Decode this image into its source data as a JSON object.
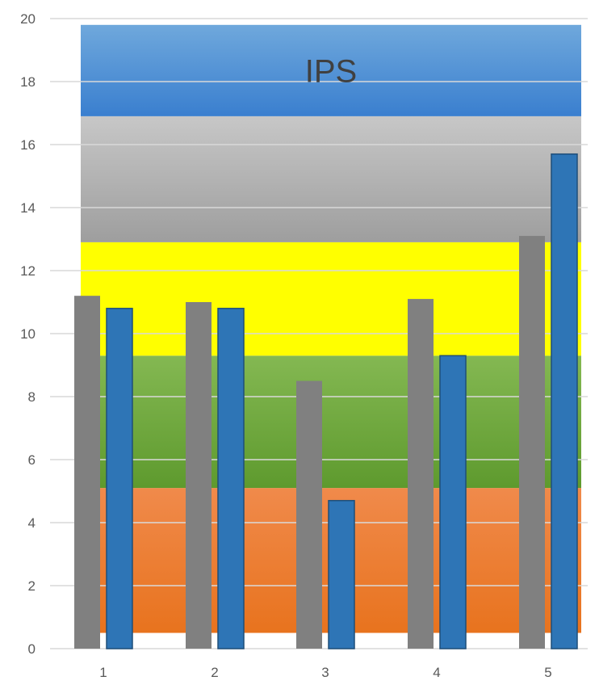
{
  "chart_data": {
    "type": "bar",
    "title": "",
    "xlabel": "",
    "ylabel": "",
    "categories": [
      "1",
      "2",
      "3",
      "4",
      "5"
    ],
    "ylim": [
      0,
      20
    ],
    "yticks": [
      0,
      2,
      4,
      6,
      8,
      10,
      12,
      14,
      16,
      18,
      20
    ],
    "grid": true,
    "legend": "none",
    "series": [
      {
        "color": "#808080",
        "values": [
          11.2,
          11.0,
          8.5,
          11.1,
          13.1
        ]
      },
      {
        "color": "#2E75B6",
        "values": [
          10.8,
          10.8,
          4.7,
          9.3,
          15.7
        ]
      }
    ],
    "bands": [
      {
        "label": "",
        "from": 0.5,
        "to": 5.1,
        "color_top": "#F08A4B",
        "color_bottom": "#E8731E"
      },
      {
        "label": "",
        "from": 5.1,
        "to": 9.3,
        "color_top": "#84B852",
        "color_bottom": "#5E9A2E"
      },
      {
        "label": "",
        "from": 9.3,
        "to": 12.9,
        "color_top": "#FFFF00",
        "color_bottom": "#FFFF00"
      },
      {
        "label": "",
        "from": 12.9,
        "to": 16.9,
        "color_top": "#C7C7C7",
        "color_bottom": "#9E9E9E"
      },
      {
        "label": "IPS",
        "from": 16.9,
        "to": 19.8,
        "color_top": "#6FA8DC",
        "color_bottom": "#3A7FCF"
      }
    ],
    "gridline_color": "#D9D9D9"
  }
}
